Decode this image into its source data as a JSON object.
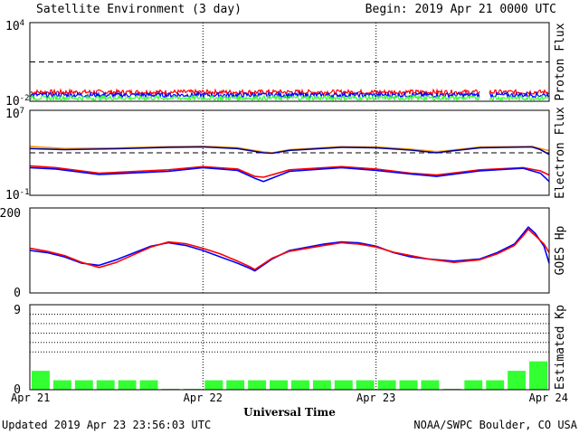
{
  "header": {
    "title": "Satellite Environment (3 day)",
    "begin": "Begin:  2019 Apr 21 0000 UTC"
  },
  "footer": {
    "updated": "Updated 2019 Apr 23 23:56:03 UTC",
    "credit": "NOAA/SWPC Boulder, CO USA",
    "xlabel": "Universal Time"
  },
  "xaxis": {
    "ticks": [
      "Apr 21",
      "Apr 22",
      "Apr 23",
      "Apr 24"
    ],
    "range_days": [
      0,
      3
    ]
  },
  "colors": {
    "red": "#ff0000",
    "blue": "#0000ff",
    "green": "#33ff33",
    "orange": "#ff9900",
    "navy": "#000099",
    "kp_bar": "#33ff33"
  },
  "chart_data": [
    {
      "type": "line",
      "ylabel": "Proton Flux",
      "yscale": "log",
      "ylim": [
        0.01,
        10000
      ],
      "ytick_labels": {
        "top_base": "10",
        "top_exp": "4",
        "bottom_base": "10",
        "bottom_exp": "-2"
      },
      "threshold": 10,
      "gap_days": [
        2.6,
        2.65
      ],
      "series": [
        {
          "color": "#ff0000",
          "level": 0.05
        },
        {
          "color": "#0000ff",
          "level": 0.03
        },
        {
          "color": "#33ff33",
          "level": 0.018
        }
      ]
    },
    {
      "type": "line",
      "ylabel": "Electron Flux",
      "yscale": "log",
      "ylim": [
        0.1,
        10000000
      ],
      "ytick_labels": {
        "top_base": "10",
        "top_exp": "7",
        "bottom_base": "10",
        "bottom_exp": "-1"
      },
      "threshold": 1000,
      "series": [
        {
          "color": "#ff9900",
          "x": [
            0,
            0.2,
            0.5,
            0.8,
            1.0,
            1.2,
            1.35,
            1.4,
            1.5,
            1.8,
            2.0,
            2.2,
            2.35,
            2.4,
            2.6,
            2.9,
            2.95,
            3.0
          ],
          "y": [
            4000,
            2500,
            2800,
            3800,
            4200,
            3000,
            1200,
            1000,
            2000,
            3800,
            3500,
            2200,
            1300,
            1500,
            3500,
            4000,
            2500,
            1600
          ]
        },
        {
          "color": "#000099",
          "x": [
            0,
            0.2,
            0.5,
            0.8,
            1.0,
            1.2,
            1.35,
            1.4,
            1.5,
            1.8,
            2.0,
            2.2,
            2.35,
            2.4,
            2.6,
            2.9,
            2.95,
            3.0
          ],
          "y": [
            2500,
            2000,
            2400,
            3300,
            3600,
            2500,
            1000,
            900,
            1700,
            3300,
            3000,
            1800,
            1000,
            1300,
            3000,
            3600,
            2000,
            700
          ]
        },
        {
          "color": "#ff0000",
          "x": [
            0,
            0.15,
            0.4,
            0.8,
            1.0,
            1.2,
            1.3,
            1.35,
            1.5,
            1.8,
            2.0,
            2.2,
            2.35,
            2.6,
            2.85,
            2.95,
            3.0
          ],
          "y": [
            60,
            40,
            12,
            25,
            50,
            30,
            6,
            5,
            25,
            50,
            30,
            12,
            8,
            25,
            40,
            20,
            8
          ]
        },
        {
          "color": "#0000ff",
          "x": [
            0,
            0.15,
            0.4,
            0.8,
            1.0,
            1.2,
            1.3,
            1.35,
            1.5,
            1.8,
            2.0,
            2.2,
            2.35,
            2.6,
            2.85,
            2.95,
            3.0
          ],
          "y": [
            40,
            30,
            9,
            18,
            40,
            22,
            4,
            2,
            18,
            40,
            22,
            10,
            6,
            20,
            35,
            12,
            2
          ]
        }
      ]
    },
    {
      "type": "line",
      "ylabel": "GOES Hp",
      "yscale": "linear",
      "ylim": [
        0,
        200
      ],
      "ytick_labels": [
        "0",
        "200"
      ],
      "series": [
        {
          "color": "#0000ff",
          "x": [
            0,
            0.1,
            0.2,
            0.3,
            0.4,
            0.5,
            0.7,
            0.8,
            0.9,
            1.0,
            1.1,
            1.2,
            1.27,
            1.3,
            1.4,
            1.5,
            1.7,
            1.8,
            1.9,
            2.0,
            2.1,
            2.2,
            2.3,
            2.45,
            2.6,
            2.7,
            2.8,
            2.85,
            2.88,
            2.92,
            2.97,
            3.0
          ],
          "y": [
            100,
            95,
            85,
            70,
            65,
            78,
            110,
            118,
            112,
            100,
            85,
            70,
            58,
            52,
            80,
            100,
            115,
            120,
            118,
            110,
            95,
            85,
            80,
            75,
            80,
            95,
            115,
            140,
            155,
            140,
            110,
            70
          ]
        },
        {
          "color": "#ff0000",
          "x": [
            0,
            0.1,
            0.2,
            0.3,
            0.4,
            0.5,
            0.7,
            0.8,
            0.9,
            1.0,
            1.1,
            1.2,
            1.27,
            1.3,
            1.4,
            1.5,
            1.7,
            1.8,
            1.9,
            2.0,
            2.1,
            2.2,
            2.3,
            2.45,
            2.6,
            2.7,
            2.8,
            2.85,
            2.88,
            2.92,
            2.97,
            3.0
          ],
          "y": [
            105,
            98,
            88,
            72,
            60,
            72,
            108,
            120,
            116,
            105,
            92,
            75,
            62,
            55,
            82,
            98,
            112,
            118,
            115,
            108,
            96,
            88,
            80,
            72,
            78,
            92,
            112,
            135,
            150,
            135,
            115,
            95
          ]
        }
      ]
    },
    {
      "type": "bar",
      "ylabel": "Estimated Kp",
      "ylim": [
        0,
        9
      ],
      "ytick_labels": [
        "0",
        "9"
      ],
      "grid_levels": [
        4,
        5,
        6,
        7,
        8,
        9
      ],
      "bar_width_days": 0.125,
      "values": [
        2,
        1,
        1,
        1,
        1,
        1,
        0,
        0,
        1,
        1,
        1,
        1,
        1,
        1,
        1,
        1,
        1,
        1,
        1,
        0,
        1,
        1,
        2,
        3
      ]
    }
  ]
}
